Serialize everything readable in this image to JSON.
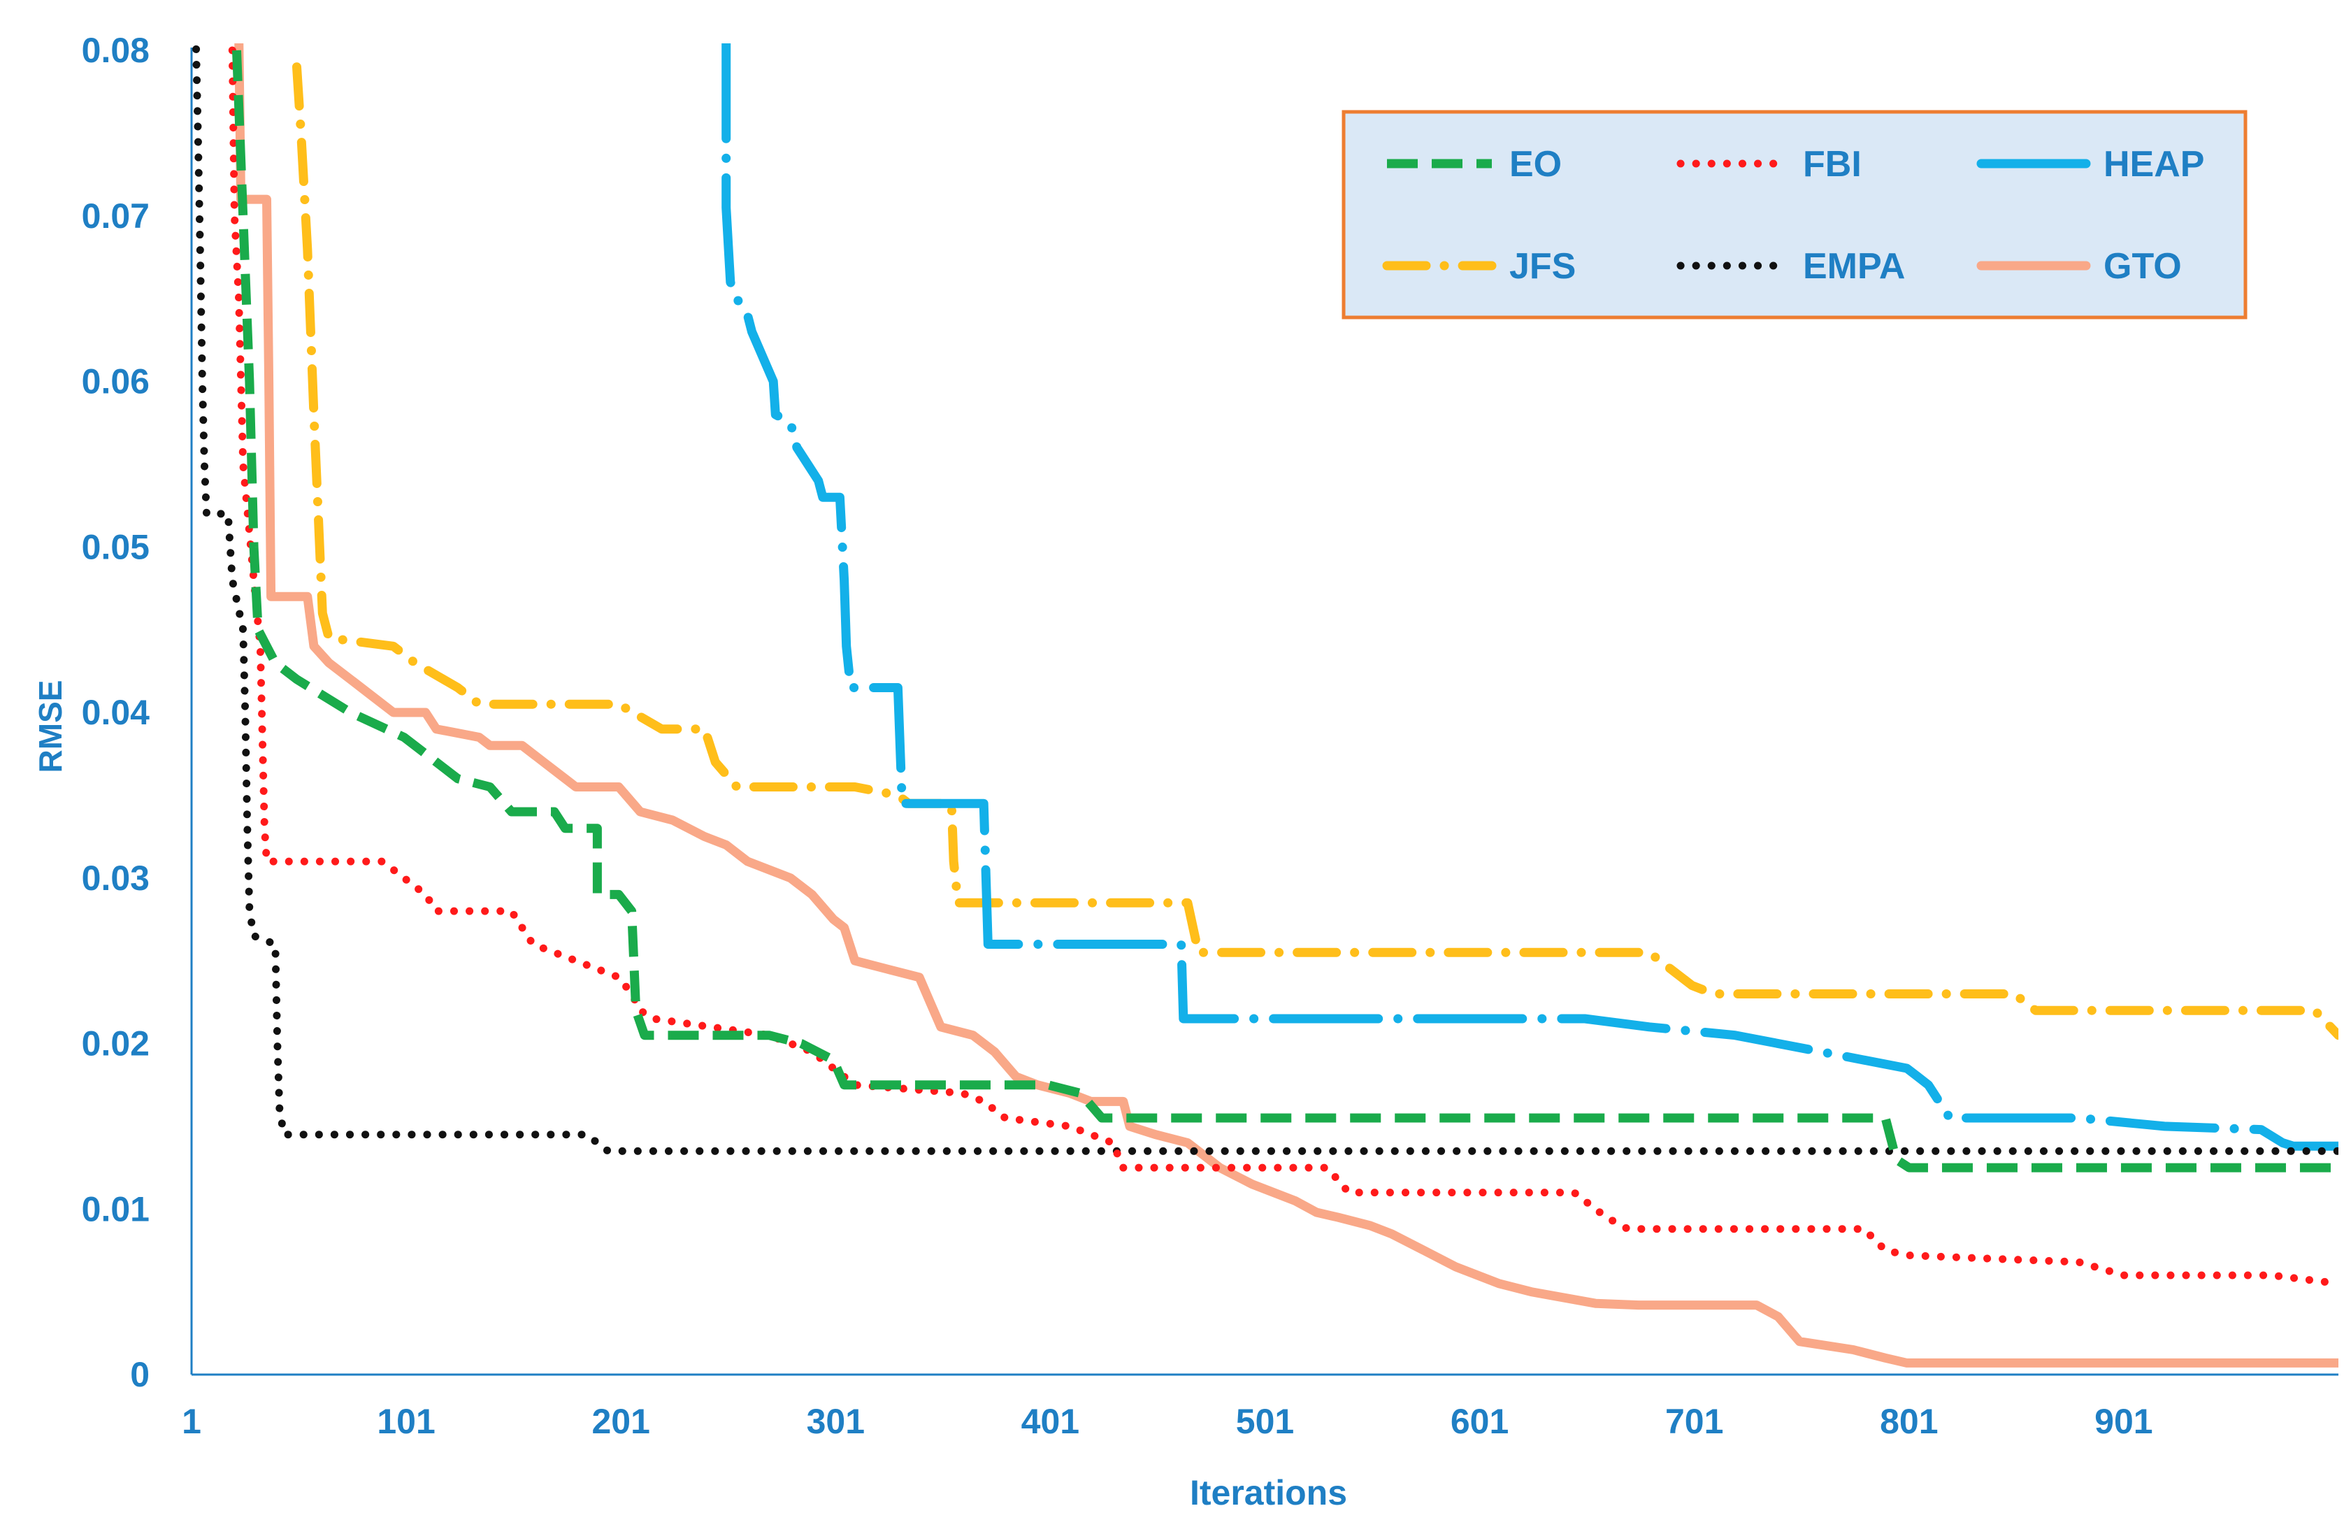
{
  "chart_data": {
    "type": "line",
    "title": "",
    "xlabel": "Iterations",
    "ylabel": "RMSE",
    "xlim": [
      1,
      1001
    ],
    "ylim": [
      0,
      0.08
    ],
    "x_ticks": [
      1,
      101,
      201,
      301,
      401,
      501,
      601,
      701,
      801,
      901
    ],
    "x_tick_labels": [
      "1",
      "101",
      "201",
      "301",
      "401",
      "501",
      "601",
      "701",
      "801",
      "901"
    ],
    "y_ticks": [
      0,
      0.01,
      0.02,
      0.03,
      0.04,
      0.05,
      0.06,
      0.07,
      0.08
    ],
    "y_tick_labels": [
      "0",
      "0.01",
      "0.02",
      "0.03",
      "0.04",
      "0.05",
      "0.06",
      "0.07",
      "0.08"
    ],
    "grid": false,
    "legend_position": "top-right",
    "series": [
      {
        "name": "EO",
        "color": "#1aab4b",
        "dash": "dash",
        "points": [
          [
            22,
            0.08
          ],
          [
            25,
            0.07
          ],
          [
            28,
            0.06
          ],
          [
            30,
            0.05
          ],
          [
            32,
            0.045
          ],
          [
            40,
            0.043
          ],
          [
            50,
            0.042
          ],
          [
            75,
            0.04
          ],
          [
            100,
            0.0385
          ],
          [
            115,
            0.037
          ],
          [
            125,
            0.036
          ],
          [
            140,
            0.0355
          ],
          [
            150,
            0.034
          ],
          [
            170,
            0.034
          ],
          [
            175,
            0.033
          ],
          [
            190,
            0.033
          ],
          [
            190,
            0.029
          ],
          [
            200,
            0.029
          ],
          [
            206,
            0.028
          ],
          [
            208,
            0.022
          ],
          [
            212,
            0.0205
          ],
          [
            270,
            0.0205
          ],
          [
            285,
            0.02
          ],
          [
            300,
            0.019
          ],
          [
            305,
            0.0175
          ],
          [
            400,
            0.0175
          ],
          [
            415,
            0.017
          ],
          [
            425,
            0.0155
          ],
          [
            790,
            0.0155
          ],
          [
            795,
            0.013
          ],
          [
            801,
            0.0125
          ],
          [
            1001,
            0.0125
          ]
        ]
      },
      {
        "name": "FBI",
        "color": "#ff1a1a",
        "dash": "dot",
        "points": [
          [
            20,
            0.08
          ],
          [
            21,
            0.07
          ],
          [
            23,
            0.065
          ],
          [
            25,
            0.055
          ],
          [
            30,
            0.048
          ],
          [
            33,
            0.044
          ],
          [
            35,
            0.033
          ],
          [
            36,
            0.031
          ],
          [
            90,
            0.031
          ],
          [
            100,
            0.03
          ],
          [
            110,
            0.029
          ],
          [
            115,
            0.028
          ],
          [
            150,
            0.028
          ],
          [
            160,
            0.026
          ],
          [
            180,
            0.025
          ],
          [
            200,
            0.024
          ],
          [
            206,
            0.023
          ],
          [
            210,
            0.022
          ],
          [
            216,
            0.0215
          ],
          [
            270,
            0.0205
          ],
          [
            290,
            0.0195
          ],
          [
            300,
            0.0185
          ],
          [
            310,
            0.0175
          ],
          [
            360,
            0.017
          ],
          [
            370,
            0.0165
          ],
          [
            380,
            0.0155
          ],
          [
            410,
            0.015
          ],
          [
            430,
            0.014
          ],
          [
            435,
            0.0125
          ],
          [
            530,
            0.0125
          ],
          [
            540,
            0.011
          ],
          [
            645,
            0.011
          ],
          [
            660,
            0.0095
          ],
          [
            670,
            0.0088
          ],
          [
            780,
            0.0088
          ],
          [
            790,
            0.0075
          ],
          [
            801,
            0.0072
          ],
          [
            840,
            0.007
          ],
          [
            880,
            0.0068
          ],
          [
            901,
            0.006
          ],
          [
            970,
            0.006
          ],
          [
            1001,
            0.0055
          ]
        ]
      },
      {
        "name": "HEAP",
        "color": "#13b0e9",
        "dash": "longdash",
        "points": [
          [
            250,
            0.081
          ],
          [
            250,
            0.0705
          ],
          [
            252,
            0.066
          ],
          [
            255,
            0.065
          ],
          [
            260,
            0.064
          ],
          [
            262,
            0.063
          ],
          [
            272,
            0.06
          ],
          [
            273,
            0.058
          ],
          [
            280,
            0.0575
          ],
          [
            283,
            0.056
          ],
          [
            288,
            0.055
          ],
          [
            293,
            0.054
          ],
          [
            295,
            0.053
          ],
          [
            303,
            0.053
          ],
          [
            305,
            0.048
          ],
          [
            306,
            0.044
          ],
          [
            308,
            0.0415
          ],
          [
            330,
            0.0415
          ],
          [
            332,
            0.0345
          ],
          [
            370,
            0.0345
          ],
          [
            372,
            0.026
          ],
          [
            412,
            0.026
          ],
          [
            440,
            0.026
          ],
          [
            462,
            0.026
          ],
          [
            463,
            0.0215
          ],
          [
            650,
            0.0215
          ],
          [
            680,
            0.021
          ],
          [
            720,
            0.0205
          ],
          [
            760,
            0.0195
          ],
          [
            800,
            0.0185
          ],
          [
            805,
            0.018
          ],
          [
            810,
            0.0175
          ],
          [
            815,
            0.0165
          ],
          [
            820,
            0.0155
          ],
          [
            880,
            0.0155
          ],
          [
            920,
            0.015
          ],
          [
            965,
            0.0148
          ],
          [
            975,
            0.014
          ],
          [
            980,
            0.0138
          ],
          [
            1001,
            0.0138
          ]
        ]
      },
      {
        "name": "JFS",
        "color": "#ffbe1a",
        "dash": "dashdot",
        "points": [
          [
            50,
            0.079
          ],
          [
            52,
            0.075
          ],
          [
            55,
            0.068
          ],
          [
            58,
            0.058
          ],
          [
            60,
            0.052
          ],
          [
            62,
            0.046
          ],
          [
            65,
            0.0445
          ],
          [
            95,
            0.044
          ],
          [
            105,
            0.043
          ],
          [
            125,
            0.0415
          ],
          [
            135,
            0.0405
          ],
          [
            200,
            0.0405
          ],
          [
            220,
            0.039
          ],
          [
            240,
            0.039
          ],
          [
            245,
            0.037
          ],
          [
            255,
            0.0355
          ],
          [
            310,
            0.0355
          ],
          [
            330,
            0.035
          ],
          [
            335,
            0.0345
          ],
          [
            355,
            0.0345
          ],
          [
            356,
            0.031
          ],
          [
            358,
            0.0285
          ],
          [
            465,
            0.0285
          ],
          [
            470,
            0.0255
          ],
          [
            680,
            0.0255
          ],
          [
            690,
            0.0245
          ],
          [
            700,
            0.0235
          ],
          [
            710,
            0.023
          ],
          [
            850,
            0.023
          ],
          [
            860,
            0.022
          ],
          [
            990,
            0.022
          ],
          [
            1001,
            0.0205
          ]
        ]
      },
      {
        "name": "EMPA",
        "color": "#111111",
        "dash": "dot",
        "points": [
          [
            3,
            0.081
          ],
          [
            4,
            0.075
          ],
          [
            5,
            0.068
          ],
          [
            6,
            0.06
          ],
          [
            7,
            0.055
          ],
          [
            8,
            0.052
          ],
          [
            18,
            0.052
          ],
          [
            20,
            0.048
          ],
          [
            25,
            0.045
          ],
          [
            26,
            0.04
          ],
          [
            27,
            0.033
          ],
          [
            28,
            0.028
          ],
          [
            30,
            0.0265
          ],
          [
            40,
            0.026
          ],
          [
            41,
            0.02
          ],
          [
            42,
            0.016
          ],
          [
            44,
            0.0145
          ],
          [
            185,
            0.0145
          ],
          [
            195,
            0.0135
          ],
          [
            1001,
            0.0135
          ]
        ]
      },
      {
        "name": "GTO",
        "color": "#f9a888",
        "dash": "solid",
        "points": [
          [
            23,
            0.081
          ],
          [
            24,
            0.071
          ],
          [
            36,
            0.071
          ],
          [
            37,
            0.06
          ],
          [
            38,
            0.047
          ],
          [
            55,
            0.047
          ],
          [
            58,
            0.044
          ],
          [
            65,
            0.043
          ],
          [
            75,
            0.042
          ],
          [
            85,
            0.041
          ],
          [
            95,
            0.04
          ],
          [
            110,
            0.04
          ],
          [
            115,
            0.039
          ],
          [
            135,
            0.0385
          ],
          [
            140,
            0.038
          ],
          [
            155,
            0.038
          ],
          [
            165,
            0.037
          ],
          [
            175,
            0.036
          ],
          [
            180,
            0.0355
          ],
          [
            200,
            0.0355
          ],
          [
            210,
            0.034
          ],
          [
            225,
            0.0335
          ],
          [
            240,
            0.0325
          ],
          [
            250,
            0.032
          ],
          [
            260,
            0.031
          ],
          [
            270,
            0.0305
          ],
          [
            280,
            0.03
          ],
          [
            290,
            0.029
          ],
          [
            300,
            0.0275
          ],
          [
            305,
            0.027
          ],
          [
            310,
            0.025
          ],
          [
            325,
            0.0245
          ],
          [
            340,
            0.024
          ],
          [
            345,
            0.0225
          ],
          [
            350,
            0.021
          ],
          [
            365,
            0.0205
          ],
          [
            375,
            0.0195
          ],
          [
            385,
            0.018
          ],
          [
            395,
            0.0175
          ],
          [
            410,
            0.017
          ],
          [
            420,
            0.0165
          ],
          [
            435,
            0.0165
          ],
          [
            438,
            0.015
          ],
          [
            450,
            0.0145
          ],
          [
            465,
            0.014
          ],
          [
            480,
            0.0125
          ],
          [
            495,
            0.0115
          ],
          [
            515,
            0.0105
          ],
          [
            525,
            0.0098
          ],
          [
            535,
            0.0095
          ],
          [
            550,
            0.009
          ],
          [
            560,
            0.0085
          ],
          [
            575,
            0.0075
          ],
          [
            590,
            0.0065
          ],
          [
            610,
            0.0055
          ],
          [
            625,
            0.005
          ],
          [
            655,
            0.0043
          ],
          [
            675,
            0.0042
          ],
          [
            730,
            0.0042
          ],
          [
            740,
            0.0035
          ],
          [
            750,
            0.002
          ],
          [
            775,
            0.0015
          ],
          [
            790,
            0.001
          ],
          [
            800,
            0.0007
          ],
          [
            1001,
            0.0007
          ]
        ]
      }
    ],
    "legend_items": [
      "EO",
      "FBI",
      "HEAP",
      "JFS",
      "EMPA",
      "GTO"
    ]
  },
  "legend_style": {
    "background": "#dae8f6",
    "border": "#ed7d31"
  }
}
